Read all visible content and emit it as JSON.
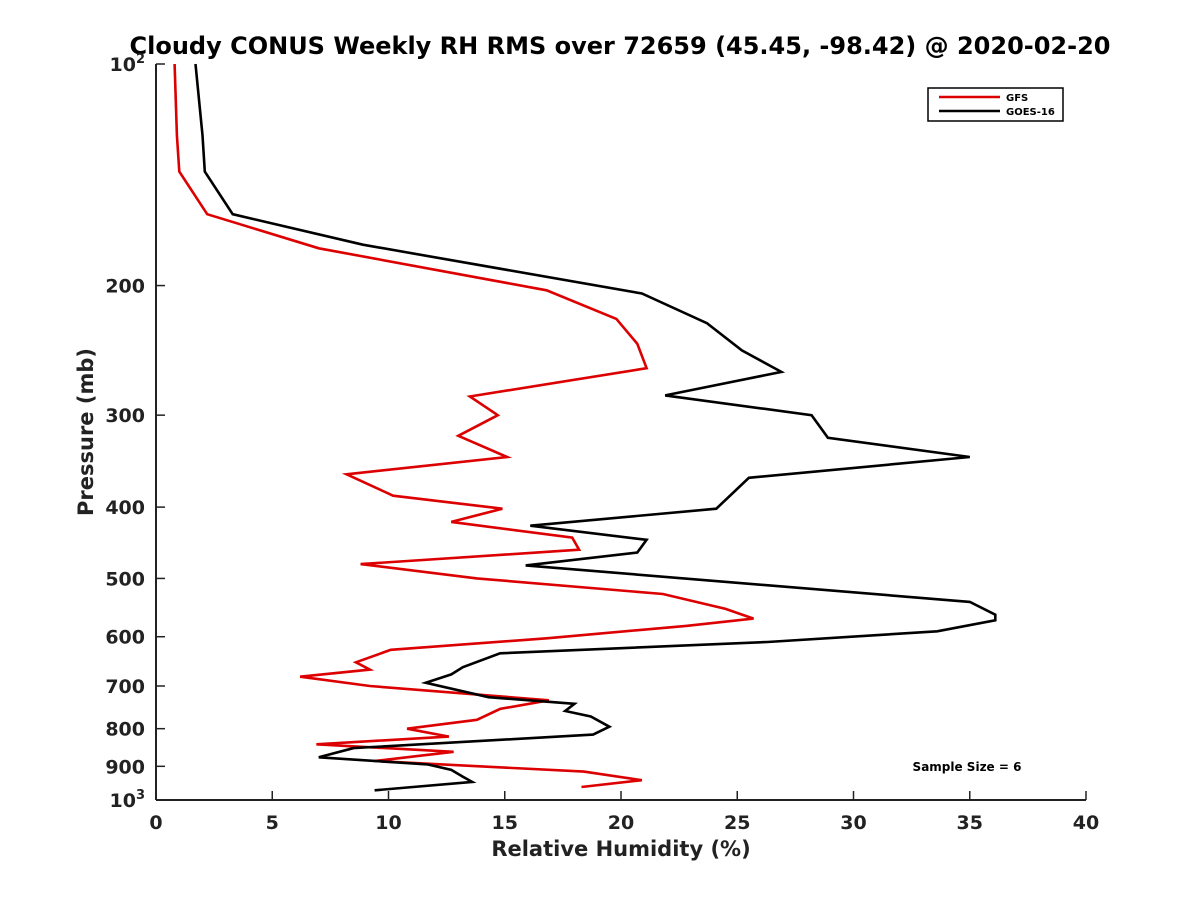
{
  "chart_data": {
    "type": "line",
    "title": "Cloudy CONUS Weekly RH RMS over 72659 (45.45, -98.42) @ 2020-02-20",
    "xlabel": "Relative Humidity (%)",
    "ylabel": "Pressure (mb)",
    "xlim": [
      0,
      40
    ],
    "ylim": [
      100,
      1000
    ],
    "y_scale": "log",
    "y_reversed": true,
    "grid": false,
    "legend_position": "top-right",
    "x_ticks": [
      "0",
      "5",
      "10",
      "15",
      "20",
      "25",
      "30",
      "35",
      "40"
    ],
    "y_ticks": [
      {
        "value": 100,
        "base": "10",
        "exp": "2"
      },
      {
        "value": 200,
        "label": "200"
      },
      {
        "value": 300,
        "label": "300"
      },
      {
        "value": 400,
        "label": "400"
      },
      {
        "value": 500,
        "label": "500"
      },
      {
        "value": 600,
        "label": "600"
      },
      {
        "value": 700,
        "label": "700"
      },
      {
        "value": 800,
        "label": "800"
      },
      {
        "value": 900,
        "label": "900"
      },
      {
        "value": 1000,
        "base": "10",
        "exp": "3"
      }
    ],
    "series": [
      {
        "name": "GFS",
        "color": "#dd0000",
        "points": [
          [
            0.8,
            100
          ],
          [
            0.9,
            125
          ],
          [
            1.0,
            140
          ],
          [
            2.2,
            160
          ],
          [
            7.0,
            178
          ],
          [
            16.8,
            203
          ],
          [
            19.8,
            222
          ],
          [
            20.7,
            240
          ],
          [
            21.1,
            259
          ],
          [
            13.5,
            283
          ],
          [
            14.7,
            300
          ],
          [
            13.0,
            320
          ],
          [
            15.1,
            342
          ],
          [
            8.2,
            361
          ],
          [
            10.2,
            386
          ],
          [
            14.9,
            402
          ],
          [
            12.7,
            419
          ],
          [
            17.9,
            440
          ],
          [
            18.2,
            457
          ],
          [
            8.8,
            478
          ],
          [
            13.8,
            500
          ],
          [
            21.8,
            525
          ],
          [
            24.5,
            550
          ],
          [
            25.7,
            567
          ],
          [
            22.8,
            580
          ],
          [
            16.8,
            603
          ],
          [
            10.1,
            625
          ],
          [
            8.6,
            650
          ],
          [
            9.2,
            665
          ],
          [
            6.2,
            680
          ],
          [
            9.2,
            700
          ],
          [
            16.9,
            732
          ],
          [
            14.8,
            752
          ],
          [
            13.8,
            778
          ],
          [
            10.8,
            800
          ],
          [
            12.6,
            820
          ],
          [
            6.9,
            840
          ],
          [
            12.8,
            860
          ],
          [
            9.4,
            885
          ],
          [
            18.4,
            915
          ],
          [
            20.9,
            940
          ],
          [
            18.3,
            960
          ]
        ]
      },
      {
        "name": "GOES-16",
        "color": "#000000",
        "points": [
          [
            1.7,
            100
          ],
          [
            2.0,
            125
          ],
          [
            2.1,
            140
          ],
          [
            3.3,
            160
          ],
          [
            8.9,
            176
          ],
          [
            20.9,
            205
          ],
          [
            23.7,
            225
          ],
          [
            25.2,
            245
          ],
          [
            26.9,
            262
          ],
          [
            21.9,
            282
          ],
          [
            28.2,
            300
          ],
          [
            28.9,
            322
          ],
          [
            35.0,
            342
          ],
          [
            25.5,
            365
          ],
          [
            24.1,
            402
          ],
          [
            16.1,
            424
          ],
          [
            21.1,
            443
          ],
          [
            20.7,
            461
          ],
          [
            15.9,
            480
          ],
          [
            35.0,
            538
          ],
          [
            36.1,
            560
          ],
          [
            36.1,
            570
          ],
          [
            33.6,
            590
          ],
          [
            26.3,
            610
          ],
          [
            14.8,
            632
          ],
          [
            13.2,
            660
          ],
          [
            12.7,
            675
          ],
          [
            11.6,
            693
          ],
          [
            14.3,
            725
          ],
          [
            18.0,
            740
          ],
          [
            17.6,
            757
          ],
          [
            18.7,
            770
          ],
          [
            19.5,
            795
          ],
          [
            18.8,
            815
          ],
          [
            8.5,
            850
          ],
          [
            7.0,
            875
          ],
          [
            11.7,
            895
          ],
          [
            12.7,
            910
          ],
          [
            13.2,
            930
          ],
          [
            13.6,
            945
          ],
          [
            9.4,
            970
          ]
        ]
      }
    ],
    "annotation": "Sample Size = 6"
  }
}
